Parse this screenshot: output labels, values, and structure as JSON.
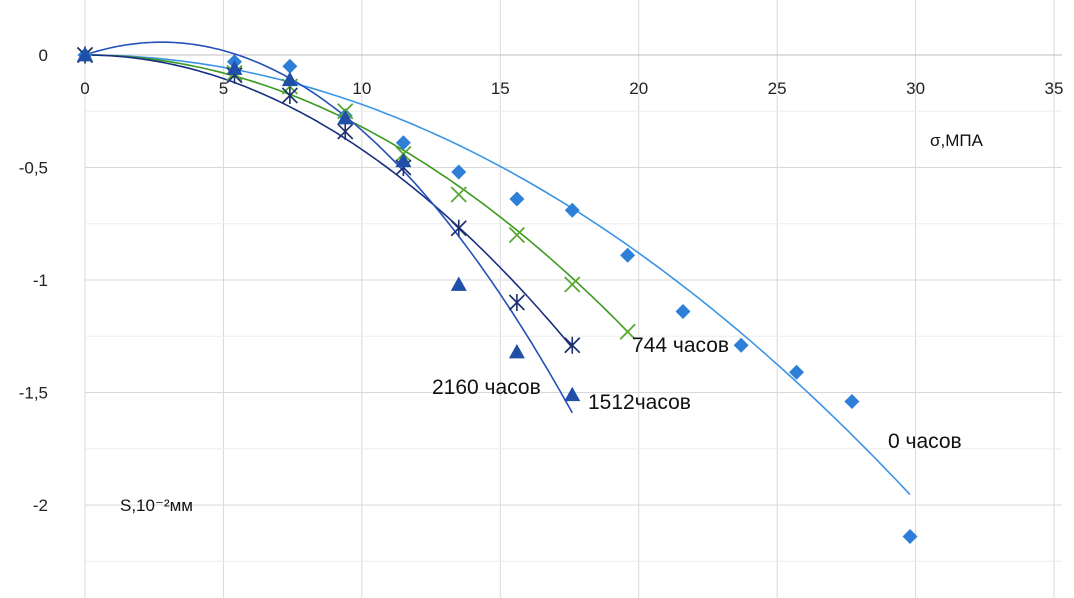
{
  "chart_data": {
    "type": "scatter",
    "title": "",
    "xlabel": "σ,МПА",
    "ylabel": "S,10⁻²мм",
    "xlim": [
      0,
      35
    ],
    "ylim": [
      -2.3,
      0.15
    ],
    "x_ticks": [
      {
        "value": 0,
        "label": "0"
      },
      {
        "value": 5,
        "label": "5"
      },
      {
        "value": 10,
        "label": "10"
      },
      {
        "value": 15,
        "label": "15"
      },
      {
        "value": 20,
        "label": "20"
      },
      {
        "value": 25,
        "label": "25"
      },
      {
        "value": 30,
        "label": "30"
      },
      {
        "value": 35,
        "label": "35"
      }
    ],
    "y_ticks": [
      {
        "value": 0,
        "label": "0"
      },
      {
        "value": -0.5,
        "label": "-0,5"
      },
      {
        "value": -1,
        "label": "-1"
      },
      {
        "value": -1.5,
        "label": "-1,5"
      },
      {
        "value": -2,
        "label": "-2"
      }
    ],
    "grid": true,
    "series": [
      {
        "label": "0 часов",
        "marker": "diamond",
        "marker_color": "#2e7fd8",
        "line_color": "#3a95e6",
        "x": [
          0,
          5.4,
          7.4,
          9.4,
          11.5,
          13.5,
          15.6,
          17.6,
          19.6,
          21.6,
          23.7,
          25.7,
          27.7,
          29.8
        ],
        "y": [
          0,
          -0.03,
          -0.05,
          -0.27,
          -0.39,
          -0.52,
          -0.64,
          -0.69,
          -0.89,
          -1.14,
          -1.29,
          -1.41,
          -1.54,
          -2.14
        ],
        "fit": {
          "x_range": [
            0,
            29.8
          ],
          "coeffs": [
            -0.0022,
            0,
            0
          ]
        }
      },
      {
        "label": "744 часов",
        "marker": "x",
        "marker_color": "#5aa832",
        "line_color": "#3a9a22",
        "x": [
          0,
          5.4,
          7.4,
          9.4,
          11.5,
          13.5,
          15.6,
          17.6,
          19.6
        ],
        "y": [
          0,
          -0.08,
          -0.14,
          -0.25,
          -0.44,
          -0.62,
          -0.8,
          -1.02,
          -1.23
        ],
        "fit": {
          "x_range": [
            0,
            19.6
          ],
          "coeffs": [
            -0.0032,
            0,
            0
          ]
        }
      },
      {
        "label": "1512часов",
        "marker": "asterisk",
        "marker_color": "#1c2f6e",
        "line_color": "#1a2f80",
        "x": [
          0,
          5.4,
          7.4,
          9.4,
          11.5,
          13.5,
          15.6,
          17.6
        ],
        "y": [
          0,
          -0.09,
          -0.18,
          -0.34,
          -0.5,
          -0.77,
          -1.1,
          -1.29
        ],
        "fit": {
          "x_range": [
            0,
            17.6
          ],
          "coeffs": [
            -0.0042,
            0,
            0
          ]
        }
      },
      {
        "label": "2160 часов",
        "marker": "triangle",
        "marker_color": "#1f4fa8",
        "line_color": "#2450b8",
        "x": [
          0,
          5.4,
          7.4,
          9.4,
          11.5,
          13.5,
          15.6,
          17.6
        ],
        "y": [
          0,
          -0.06,
          -0.11,
          -0.28,
          -0.47,
          -1.02,
          -1.32,
          -1.51
        ],
        "fit": {
          "x_range": [
            0,
            17.6
          ],
          "coeffs": [
            -0.00748,
            0.0413,
            0
          ]
        }
      }
    ]
  }
}
